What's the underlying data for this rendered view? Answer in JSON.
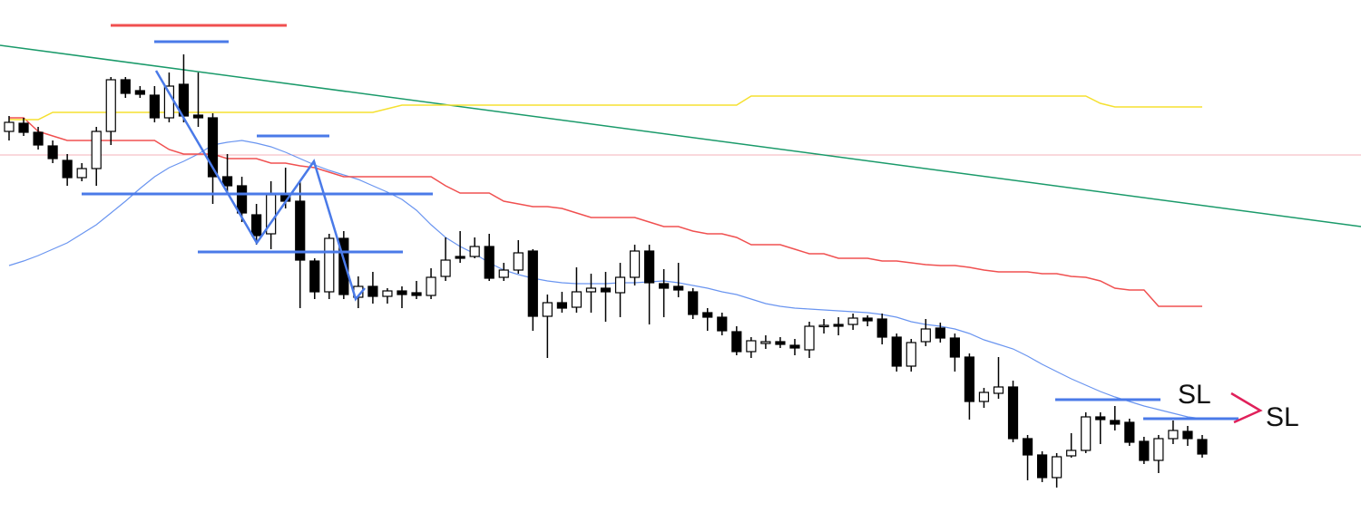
{
  "chart_data": {
    "type": "candlestick",
    "ylim": [
      0,
      576
    ],
    "up_color": "#ffffff",
    "down_color": "#000000",
    "outline_color": "#000000",
    "open": [
      431,
      440,
      430,
      415,
      399,
      380,
      390,
      431,
      488,
      476,
      471,
      446,
      483,
      449,
      446,
      381,
      371,
      339,
      318,
      362,
      354,
      288,
      254,
      313,
      248,
      260,
      249,
      255,
      253,
      250,
      271,
      293,
      293,
      304,
      270,
      278,
      299,
      227,
      242,
      237,
      254,
      258,
      253,
      270,
      299,
      263,
      260,
      254,
      231,
      226,
      210,
      188,
      197,
      199,
      195,
      190,
      216,
      218,
      218,
      225,
      224,
      204,
      172,
      199,
      214,
      203,
      182,
      133,
      142,
      149,
      92,
      74,
      49,
      73,
      79,
      116,
      112,
      110,
      89,
      68,
      92,
      100,
      91
    ],
    "high": [
      448,
      446,
      436,
      421,
      406,
      396,
      436,
      491,
      491,
      481,
      481,
      496,
      516,
      496,
      451,
      406,
      381,
      351,
      376,
      391,
      376,
      291,
      318,
      321,
      271,
      276,
      258,
      260,
      266,
      280,
      314,
      321,
      314,
      318,
      286,
      311,
      301,
      251,
      254,
      281,
      274,
      276,
      286,
      306,
      306,
      279,
      286,
      258,
      236,
      231,
      216,
      204,
      206,
      204,
      202,
      221,
      224,
      226,
      230,
      228,
      230,
      208,
      202,
      224,
      220,
      208,
      186,
      148,
      182,
      156,
      96,
      78,
      76,
      98,
      121,
      121,
      128,
      114,
      94,
      96,
      112,
      106,
      96
    ],
    "low": [
      421,
      426,
      411,
      396,
      371,
      376,
      371,
      416,
      468,
      468,
      441,
      441,
      441,
      436,
      351,
      361,
      331,
      306,
      301,
      346,
      236,
      246,
      246,
      246,
      236,
      241,
      241,
      236,
      246,
      246,
      266,
      286,
      291,
      266,
      266,
      274,
      211,
      181,
      231,
      231,
      231,
      221,
      226,
      261,
      218,
      226,
      248,
      224,
      211,
      206,
      184,
      181,
      191,
      192,
      184,
      181,
      208,
      206,
      212,
      216,
      196,
      166,
      166,
      194,
      198,
      166,
      113,
      126,
      136,
      88,
      46,
      44,
      38,
      71,
      76,
      86,
      101,
      84,
      64,
      54,
      86,
      84,
      71
    ],
    "close": [
      441,
      430,
      416,
      401,
      380,
      390,
      431,
      488,
      473,
      472,
      446,
      481,
      448,
      446,
      381,
      371,
      341,
      316,
      361,
      354,
      289,
      254,
      313,
      251,
      260,
      249,
      255,
      251,
      250,
      270,
      289,
      291,
      304,
      269,
      278,
      297,
      227,
      242,
      236,
      254,
      258,
      254,
      270,
      299,
      264,
      258,
      256,
      229,
      226,
      211,
      188,
      200,
      199,
      196,
      192,
      216,
      217,
      216,
      225,
      222,
      204,
      172,
      198,
      213,
      203,
      182,
      133,
      143,
      149,
      92,
      74,
      49,
      72,
      79,
      116,
      113,
      108,
      88,
      68,
      92,
      101,
      92,
      75
    ],
    "series": [
      {
        "name": "ma",
        "color": "#6a95f0",
        "values": [
          283,
          288,
          294,
          301,
          308,
          318,
          328,
          341,
          354,
          368,
          381,
          391,
          398,
          406,
          416,
          419,
          421,
          418,
          414,
          408,
          401,
          394,
          388,
          383,
          378,
          371,
          364,
          356,
          344,
          328,
          314,
          304,
          296,
          286,
          278,
          273,
          269,
          266,
          264,
          263,
          263,
          263,
          264,
          264,
          265,
          266,
          264,
          261,
          258,
          254,
          251,
          246,
          241,
          238,
          236,
          235,
          234,
          233,
          232,
          231,
          229,
          226,
          221,
          218,
          216,
          213,
          208,
          201,
          196,
          191,
          183,
          174,
          166,
          158,
          151,
          144,
          138,
          133,
          128,
          124,
          120,
          116,
          114
        ]
      },
      {
        "name": "red-level",
        "color": "#f05050",
        "values": [
          446,
          446,
          431,
          426,
          421,
          421,
          421,
          421,
          421,
          421,
          421,
          411,
          406,
          406,
          406,
          401,
          401,
          401,
          396,
          396,
          393,
          391,
          386,
          381,
          381,
          381,
          381,
          381,
          381,
          381,
          371,
          363,
          363,
          363,
          354,
          351,
          348,
          348,
          346,
          341,
          336,
          336,
          336,
          336,
          331,
          326,
          326,
          321,
          318,
          318,
          314,
          306,
          306,
          306,
          301,
          296,
          296,
          291,
          291,
          291,
          288,
          288,
          286,
          284,
          283,
          283,
          281,
          278,
          276,
          276,
          276,
          274,
          274,
          271,
          270,
          266,
          258,
          256,
          256,
          238,
          238,
          238,
          238
        ]
      },
      {
        "name": "yellow-level",
        "color": "#f5e030",
        "values": [
          444,
          444,
          444,
          452,
          452,
          452,
          452,
          452,
          452,
          452,
          452,
          452,
          452,
          452,
          452,
          452,
          452,
          452,
          452,
          452,
          452,
          452,
          452,
          452,
          452,
          452,
          456,
          460,
          460,
          460,
          460,
          460,
          460,
          460,
          460,
          460,
          460,
          460,
          460,
          460,
          460,
          460,
          460,
          460,
          460,
          460,
          460,
          460,
          460,
          460,
          460,
          470,
          470,
          470,
          470,
          470,
          470,
          470,
          470,
          470,
          470,
          470,
          470,
          470,
          470,
          470,
          470,
          470,
          470,
          470,
          470,
          470,
          470,
          470,
          470,
          462,
          458,
          458,
          458,
          458,
          458,
          458,
          458
        ]
      }
    ],
    "annotations": [
      "SL",
      "SL"
    ]
  }
}
